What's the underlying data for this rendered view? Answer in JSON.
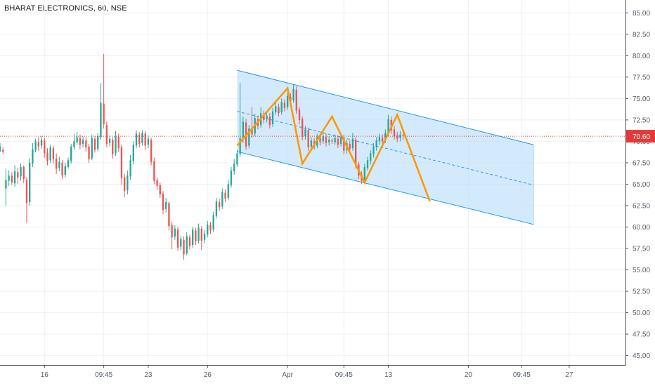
{
  "chart_data": {
    "type": "candlestick",
    "title": "BHARAT ELECTRONICS, 60, NSE",
    "last_price": 70.6,
    "last_price_label": "70.60",
    "y_ticks": [
      45.0,
      47.5,
      50.0,
      52.5,
      55.0,
      57.5,
      60.0,
      62.5,
      65.0,
      67.5,
      70.0,
      72.5,
      75.0,
      77.5,
      80.0,
      82.5,
      85.0
    ],
    "ylim": [
      43.9,
      86.5
    ],
    "x_ticks": [
      {
        "label": "16",
        "i": 15
      },
      {
        "label": "09:45",
        "i": 35
      },
      {
        "label": "23",
        "i": 50
      },
      {
        "label": "26",
        "i": 70
      },
      {
        "label": "Apr",
        "i": 97
      },
      {
        "label": "09:45",
        "i": 116
      },
      {
        "label": "13",
        "i": 131
      },
      {
        "label": "20",
        "i": 158
      },
      {
        "label": "09:45",
        "i": 176
      },
      {
        "label": "27",
        "i": 192
      }
    ],
    "xlim": [
      0,
      211
    ],
    "candles": [
      [
        68.8,
        69.4,
        69.8,
        69.1
      ],
      [
        69.0,
        68.8,
        69.3,
        68.5
      ],
      [
        64.5,
        65.5,
        66.8,
        62.5
      ],
      [
        65.4,
        66.0,
        66.6,
        64.8
      ],
      [
        66.0,
        65.2,
        66.4,
        64.9
      ],
      [
        65.1,
        66.5,
        67.2,
        64.7
      ],
      [
        66.4,
        65.8,
        66.9,
        65.0
      ],
      [
        65.9,
        67.0,
        67.4,
        65.4
      ],
      [
        67.0,
        65.6,
        67.2,
        65.1
      ],
      [
        65.5,
        62.8,
        65.8,
        60.5
      ],
      [
        62.9,
        67.5,
        68.0,
        62.5
      ],
      [
        67.4,
        69.1,
        69.8,
        67.0
      ],
      [
        69.0,
        70.0,
        70.3,
        68.7
      ],
      [
        69.9,
        69.4,
        70.5,
        68.9
      ],
      [
        69.5,
        70.2,
        70.6,
        69.1
      ],
      [
        70.1,
        68.6,
        70.4,
        68.1
      ],
      [
        68.7,
        67.7,
        69.2,
        67.2
      ],
      [
        67.8,
        69.3,
        69.6,
        67.5
      ],
      [
        69.2,
        67.9,
        69.5,
        67.4
      ],
      [
        68.0,
        66.8,
        68.6,
        66.2
      ],
      [
        66.9,
        67.6,
        68.2,
        66.5
      ],
      [
        67.5,
        66.0,
        67.8,
        65.6
      ],
      [
        66.1,
        67.1,
        67.5,
        65.8
      ],
      [
        67.0,
        67.8,
        68.1,
        66.8
      ],
      [
        67.7,
        69.4,
        69.7,
        67.4
      ],
      [
        69.3,
        70.0,
        70.9,
        69.0
      ],
      [
        69.9,
        70.5,
        71.1,
        69.6
      ],
      [
        70.4,
        69.6,
        70.8,
        69.1
      ],
      [
        69.7,
        70.2,
        70.6,
        69.3
      ],
      [
        70.1,
        69.3,
        70.5,
        68.8
      ],
      [
        69.4,
        67.9,
        69.7,
        67.5
      ],
      [
        68.0,
        70.4,
        70.8,
        67.8
      ],
      [
        70.3,
        69.0,
        70.6,
        68.7
      ],
      [
        69.1,
        70.6,
        71.0,
        68.8
      ],
      [
        70.5,
        74.5,
        76.8,
        70.2
      ],
      [
        74.4,
        72.0,
        80.2,
        71.5
      ],
      [
        71.9,
        69.7,
        72.3,
        69.3
      ],
      [
        69.8,
        70.3,
        70.7,
        69.4
      ],
      [
        70.2,
        68.5,
        70.5,
        68.0
      ],
      [
        68.6,
        70.6,
        71.2,
        68.3
      ],
      [
        70.5,
        69.2,
        70.9,
        68.8
      ],
      [
        69.3,
        65.7,
        69.6,
        64.9
      ],
      [
        65.8,
        64.2,
        66.2,
        63.5
      ],
      [
        64.3,
        66.0,
        66.6,
        63.8
      ],
      [
        65.9,
        67.8,
        68.4,
        65.5
      ],
      [
        67.7,
        69.6,
        70.0,
        67.3
      ],
      [
        69.5,
        70.9,
        71.3,
        69.2
      ],
      [
        70.8,
        69.7,
        71.1,
        69.3
      ],
      [
        69.8,
        71.0,
        71.3,
        69.5
      ],
      [
        70.9,
        69.5,
        71.2,
        69.0
      ],
      [
        69.6,
        70.3,
        70.7,
        69.2
      ],
      [
        70.2,
        67.6,
        70.4,
        67.2
      ],
      [
        67.7,
        65.4,
        68.1,
        65.0
      ],
      [
        65.5,
        64.8,
        65.8,
        64.3
      ],
      [
        64.9,
        63.8,
        65.2,
        63.4
      ],
      [
        63.9,
        62.0,
        64.2,
        61.5
      ],
      [
        62.1,
        62.9,
        63.4,
        61.7
      ],
      [
        62.8,
        60.1,
        63.0,
        59.6
      ],
      [
        60.2,
        58.8,
        60.6,
        57.4
      ],
      [
        58.9,
        59.8,
        60.2,
        58.5
      ],
      [
        59.7,
        57.6,
        60.0,
        57.2
      ],
      [
        57.7,
        58.6,
        59.0,
        57.3
      ],
      [
        58.5,
        56.8,
        58.9,
        56.2
      ],
      [
        56.9,
        58.9,
        59.4,
        56.7
      ],
      [
        58.8,
        57.8,
        59.1,
        57.4
      ],
      [
        57.9,
        59.7,
        60.0,
        57.6
      ],
      [
        59.6,
        58.3,
        59.9,
        57.9
      ],
      [
        58.4,
        59.9,
        60.4,
        58.1
      ],
      [
        59.8,
        58.4,
        60.1,
        57.3
      ],
      [
        58.5,
        59.2,
        59.6,
        58.1
      ],
      [
        59.1,
        60.3,
        60.7,
        58.8
      ],
      [
        60.2,
        59.6,
        60.6,
        59.2
      ],
      [
        59.7,
        61.4,
        61.8,
        59.4
      ],
      [
        61.3,
        63.0,
        63.4,
        61.0
      ],
      [
        62.9,
        62.3,
        63.3,
        61.9
      ],
      [
        62.4,
        64.1,
        64.5,
        62.1
      ],
      [
        64.0,
        63.3,
        64.4,
        62.9
      ],
      [
        63.4,
        65.0,
        65.5,
        63.1
      ],
      [
        64.9,
        66.6,
        67.0,
        64.6
      ],
      [
        66.5,
        67.4,
        67.9,
        66.1
      ],
      [
        67.3,
        68.6,
        69.0,
        67.0
      ],
      [
        68.5,
        70.4,
        76.8,
        68.2
      ],
      [
        70.3,
        72.3,
        72.9,
        69.8
      ],
      [
        72.2,
        69.4,
        72.6,
        69.0
      ],
      [
        69.5,
        71.5,
        71.9,
        69.2
      ],
      [
        71.4,
        70.8,
        74.0,
        70.4
      ],
      [
        70.9,
        72.7,
        73.2,
        70.6
      ],
      [
        72.6,
        71.8,
        73.0,
        71.4
      ],
      [
        71.9,
        73.3,
        74.0,
        71.6
      ],
      [
        73.2,
        72.5,
        73.6,
        72.1
      ],
      [
        72.6,
        73.0,
        73.4,
        72.2
      ],
      [
        72.9,
        71.9,
        73.3,
        71.5
      ],
      [
        72.0,
        73.5,
        73.9,
        71.7
      ],
      [
        73.4,
        74.1,
        74.5,
        73.1
      ],
      [
        74.0,
        73.3,
        74.4,
        72.9
      ],
      [
        73.4,
        74.6,
        75.0,
        73.1
      ],
      [
        74.5,
        73.9,
        74.9,
        73.5
      ],
      [
        74.0,
        75.3,
        75.7,
        73.7
      ],
      [
        75.2,
        74.7,
        75.6,
        74.3
      ],
      [
        74.8,
        76.1,
        76.6,
        74.5
      ],
      [
        76.0,
        73.6,
        76.4,
        73.2
      ],
      [
        73.7,
        72.5,
        74.0,
        72.0
      ],
      [
        72.6,
        70.5,
        72.9,
        70.1
      ],
      [
        70.6,
        71.4,
        71.8,
        70.2
      ],
      [
        71.3,
        69.3,
        71.6,
        68.9
      ],
      [
        69.4,
        70.1,
        70.5,
        69.0
      ],
      [
        70.0,
        69.4,
        70.4,
        69.0
      ],
      [
        69.5,
        70.5,
        70.9,
        69.2
      ],
      [
        70.4,
        69.9,
        70.8,
        69.5
      ],
      [
        70.0,
        70.6,
        71.0,
        69.7
      ],
      [
        70.5,
        69.8,
        70.9,
        69.4
      ],
      [
        69.9,
        70.2,
        70.6,
        69.5
      ],
      [
        70.1,
        70.0,
        70.4,
        69.7
      ],
      [
        69.9,
        70.4,
        70.8,
        69.6
      ],
      [
        70.3,
        69.6,
        70.7,
        69.2
      ],
      [
        69.7,
        70.5,
        70.9,
        69.4
      ],
      [
        70.4,
        68.9,
        70.8,
        68.5
      ],
      [
        69.0,
        69.8,
        70.2,
        68.6
      ],
      [
        69.7,
        69.1,
        70.1,
        68.7
      ],
      [
        69.2,
        70.3,
        71.0,
        68.9
      ],
      [
        70.2,
        67.2,
        70.5,
        66.8
      ],
      [
        67.3,
        66.0,
        67.6,
        65.6
      ],
      [
        66.1,
        65.4,
        66.5,
        65.0
      ],
      [
        65.5,
        67.0,
        67.4,
        65.2
      ],
      [
        66.9,
        67.8,
        68.2,
        66.6
      ],
      [
        67.7,
        68.6,
        69.0,
        67.3
      ],
      [
        68.5,
        69.4,
        69.8,
        68.1
      ],
      [
        69.3,
        70.1,
        70.5,
        68.9
      ],
      [
        70.0,
        70.5,
        70.9,
        69.6
      ],
      [
        70.4,
        70.0,
        70.8,
        69.7
      ],
      [
        70.1,
        71.0,
        71.4,
        69.8
      ],
      [
        70.9,
        72.6,
        73.1,
        70.6
      ],
      [
        72.5,
        71.3,
        72.9,
        70.9
      ],
      [
        71.4,
        70.6,
        71.8,
        70.2
      ],
      [
        70.7,
        70.3,
        71.1,
        69.9
      ],
      [
        70.4,
        70.8,
        71.2,
        70.0
      ],
      [
        70.7,
        70.6,
        71.1,
        70.2
      ]
    ],
    "channel": {
      "start_index": 80,
      "end_index": 180,
      "upper": [
        78.3,
        69.6
      ],
      "lower": [
        68.8,
        60.3
      ],
      "median": [
        73.5,
        64.9
      ]
    },
    "zigzag": [
      [
        80,
        69.5
      ],
      [
        97,
        76.2
      ],
      [
        102,
        67.4
      ],
      [
        112,
        72.9
      ],
      [
        123,
        65.2
      ],
      [
        134,
        73.1
      ],
      [
        145,
        63.0
      ]
    ],
    "colors": {
      "up": "#26a69a",
      "down": "#ef5350",
      "channel_line": "#2196f3",
      "channel_fill": "#bbdefb",
      "zigzag": "#ff9800",
      "price_line": "#e53935",
      "price_label_bg": "#e53935"
    }
  }
}
